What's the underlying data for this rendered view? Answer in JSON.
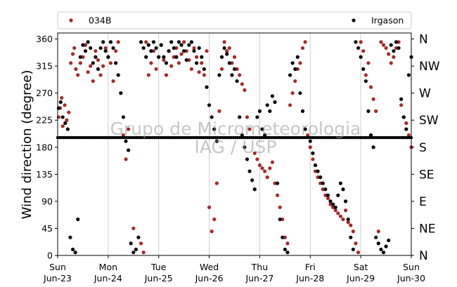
{
  "chart_data": {
    "type": "scatter",
    "ylabel": "Wind direction (degree)",
    "ylim": [
      0,
      370
    ],
    "yticks": [
      0,
      45,
      90,
      135,
      180,
      225,
      270,
      315,
      360
    ],
    "compass_labels": [
      {
        "label": "N",
        "value": 0
      },
      {
        "label": "NE",
        "value": 45
      },
      {
        "label": "E",
        "value": 90
      },
      {
        "label": "SE",
        "value": 135
      },
      {
        "label": "S",
        "value": 180
      },
      {
        "label": "SW",
        "value": 225
      },
      {
        "label": "W",
        "value": 270
      },
      {
        "label": "NW",
        "value": 315
      },
      {
        "label": "N",
        "value": 360
      }
    ],
    "xlim": [
      0,
      7
    ],
    "xticks": [
      {
        "day": "Sun",
        "date": "Jun-23",
        "value": 0
      },
      {
        "day": "Mon",
        "date": "Jun-24",
        "value": 1
      },
      {
        "day": "Tue",
        "date": "Jun-25",
        "value": 2
      },
      {
        "day": "Wed",
        "date": "Jun-26",
        "value": 3
      },
      {
        "day": "Thu",
        "date": "Jun-27",
        "value": 4
      },
      {
        "day": "Fri",
        "date": "Jun-28",
        "value": 5
      },
      {
        "day": "Sat",
        "date": "Jun-29",
        "value": 6
      },
      {
        "day": "Sun",
        "date": "Jun-30",
        "value": 7
      }
    ],
    "grid": "vertical",
    "legend_position": "top",
    "watermark": [
      "Grupo de Micrometeorologia",
      "IAG / USP"
    ],
    "series": [
      {
        "name": "034B",
        "color": "#a52a2a",
        "points": [
          [
            0.02,
            230
          ],
          [
            0.05,
            245
          ],
          [
            0.08,
            262
          ],
          [
            0.1,
            215
          ],
          [
            0.14,
            250
          ],
          [
            0.18,
            225
          ],
          [
            0.22,
            238
          ],
          [
            0.26,
            320
          ],
          [
            0.3,
            335
          ],
          [
            0.33,
            345
          ],
          [
            0.36,
            310
          ],
          [
            0.4,
            300
          ],
          [
            0.45,
            320
          ],
          [
            0.5,
            330
          ],
          [
            0.55,
            350
          ],
          [
            0.6,
            305
          ],
          [
            0.65,
            315
          ],
          [
            0.7,
            290
          ],
          [
            0.75,
            340
          ],
          [
            0.8,
            325
          ],
          [
            0.85,
            300
          ],
          [
            0.9,
            315
          ],
          [
            0.95,
            345
          ],
          [
            1.0,
            330
          ],
          [
            1.05,
            320
          ],
          [
            1.1,
            290
          ],
          [
            1.15,
            340
          ],
          [
            1.2,
            355
          ],
          [
            1.3,
            200
          ],
          [
            1.35,
            160
          ],
          [
            1.4,
            210
          ],
          [
            1.5,
            45
          ],
          [
            1.55,
            10
          ],
          [
            1.6,
            30
          ],
          [
            1.65,
            20
          ],
          [
            1.7,
            5
          ],
          [
            1.75,
            355
          ],
          [
            1.8,
            300
          ],
          [
            1.85,
            320
          ],
          [
            1.9,
            340
          ],
          [
            1.95,
            310
          ],
          [
            2.0,
            330
          ],
          [
            2.05,
            350
          ],
          [
            2.1,
            325
          ],
          [
            2.15,
            300
          ],
          [
            2.2,
            340
          ],
          [
            2.25,
            315
          ],
          [
            2.3,
            330
          ],
          [
            2.35,
            345
          ],
          [
            2.4,
            320
          ],
          [
            2.45,
            335
          ],
          [
            2.5,
            355
          ],
          [
            2.55,
            340
          ],
          [
            2.6,
            325
          ],
          [
            2.65,
            310
          ],
          [
            2.7,
            345
          ],
          [
            2.75,
            330
          ],
          [
            2.8,
            305
          ],
          [
            2.85,
            320
          ],
          [
            2.9,
            300
          ],
          [
            2.95,
            340
          ],
          [
            3.0,
            80
          ],
          [
            3.05,
            40
          ],
          [
            3.1,
            60
          ],
          [
            3.15,
            120
          ],
          [
            3.2,
            240
          ],
          [
            3.25,
            310
          ],
          [
            3.3,
            355
          ],
          [
            3.35,
            340
          ],
          [
            3.4,
            345
          ],
          [
            3.45,
            320
          ],
          [
            3.5,
            330
          ],
          [
            3.55,
            310
          ],
          [
            3.6,
            300
          ],
          [
            3.65,
            285
          ],
          [
            3.7,
            275
          ],
          [
            3.75,
            230
          ],
          [
            3.8,
            210
          ],
          [
            3.9,
            170
          ],
          [
            3.95,
            160
          ],
          [
            4.0,
            150
          ],
          [
            4.05,
            145
          ],
          [
            4.1,
            140
          ],
          [
            4.15,
            130
          ],
          [
            4.2,
            145
          ],
          [
            4.25,
            155
          ],
          [
            4.3,
            120
          ],
          [
            4.35,
            100
          ],
          [
            4.4,
            80
          ],
          [
            4.45,
            60
          ],
          [
            4.5,
            30
          ],
          [
            4.55,
            20
          ],
          [
            4.6,
            250
          ],
          [
            4.65,
            270
          ],
          [
            4.7,
            290
          ],
          [
            4.75,
            310
          ],
          [
            4.8,
            320
          ],
          [
            4.85,
            345
          ],
          [
            4.9,
            355
          ],
          [
            4.95,
            200
          ],
          [
            5.0,
            180
          ],
          [
            5.05,
            160
          ],
          [
            5.1,
            140
          ],
          [
            5.15,
            130
          ],
          [
            5.2,
            120
          ],
          [
            5.25,
            110
          ],
          [
            5.3,
            100
          ],
          [
            5.35,
            95
          ],
          [
            5.4,
            85
          ],
          [
            5.45,
            80
          ],
          [
            5.5,
            75
          ],
          [
            5.55,
            70
          ],
          [
            5.6,
            65
          ],
          [
            5.65,
            60
          ],
          [
            5.7,
            75
          ],
          [
            5.75,
            55
          ],
          [
            5.8,
            50
          ],
          [
            5.85,
            40
          ],
          [
            5.9,
            20
          ],
          [
            5.95,
            5
          ],
          [
            6.0,
            355
          ],
          [
            6.05,
            340
          ],
          [
            6.1,
            300
          ],
          [
            6.15,
            320
          ],
          [
            6.2,
            280
          ],
          [
            6.25,
            260
          ],
          [
            6.3,
            240
          ],
          [
            6.35,
            40
          ],
          [
            6.4,
            355
          ],
          [
            6.45,
            350
          ],
          [
            6.5,
            345
          ],
          [
            6.55,
            335
          ],
          [
            6.6,
            320
          ],
          [
            6.65,
            330
          ],
          [
            6.7,
            345
          ],
          [
            6.75,
            355
          ],
          [
            6.8,
            250
          ],
          [
            6.85,
            230
          ],
          [
            6.9,
            220
          ],
          [
            6.95,
            200
          ],
          [
            7.0,
            180
          ]
        ]
      },
      {
        "name": "Irgason",
        "color": "#000000",
        "points": [
          [
            0.02,
            245
          ],
          [
            0.06,
            255
          ],
          [
            0.1,
            230
          ],
          [
            0.15,
            220
          ],
          [
            0.2,
            210
          ],
          [
            0.25,
            30
          ],
          [
            0.3,
            10
          ],
          [
            0.35,
            5
          ],
          [
            0.4,
            60
          ],
          [
            0.45,
            330
          ],
          [
            0.5,
            350
          ],
          [
            0.55,
            340
          ],
          [
            0.6,
            355
          ],
          [
            0.65,
            345
          ],
          [
            0.7,
            320
          ],
          [
            0.75,
            330
          ],
          [
            0.8,
            310
          ],
          [
            0.85,
            345
          ],
          [
            0.9,
            355
          ],
          [
            0.95,
            340
          ],
          [
            1.0,
            330
          ],
          [
            1.05,
            355
          ],
          [
            1.1,
            345
          ],
          [
            1.15,
            320
          ],
          [
            1.2,
            300
          ],
          [
            1.25,
            270
          ],
          [
            1.3,
            230
          ],
          [
            1.35,
            190
          ],
          [
            1.4,
            175
          ],
          [
            1.45,
            20
          ],
          [
            1.5,
            5
          ],
          [
            1.55,
            10
          ],
          [
            1.6,
            30
          ],
          [
            1.65,
            355
          ],
          [
            1.7,
            345
          ],
          [
            1.75,
            330
          ],
          [
            1.8,
            350
          ],
          [
            1.85,
            340
          ],
          [
            1.9,
            355
          ],
          [
            1.95,
            345
          ],
          [
            2.0,
            330
          ],
          [
            2.05,
            350
          ],
          [
            2.1,
            330
          ],
          [
            2.15,
            320
          ],
          [
            2.2,
            340
          ],
          [
            2.25,
            355
          ],
          [
            2.3,
            345
          ],
          [
            2.35,
            330
          ],
          [
            2.4,
            355
          ],
          [
            2.45,
            350
          ],
          [
            2.5,
            340
          ],
          [
            2.55,
            325
          ],
          [
            2.6,
            350
          ],
          [
            2.65,
            355
          ],
          [
            2.7,
            340
          ],
          [
            2.75,
            320
          ],
          [
            2.8,
            345
          ],
          [
            2.85,
            330
          ],
          [
            2.9,
            310
          ],
          [
            2.95,
            280
          ],
          [
            3.0,
            250
          ],
          [
            3.05,
            230
          ],
          [
            3.1,
            210
          ],
          [
            3.15,
            190
          ],
          [
            3.2,
            300
          ],
          [
            3.25,
            330
          ],
          [
            3.3,
            345
          ],
          [
            3.35,
            335
          ],
          [
            3.4,
            320
          ],
          [
            3.45,
            300
          ],
          [
            3.5,
            310
          ],
          [
            3.55,
            290
          ],
          [
            3.6,
            230
          ],
          [
            3.65,
            200
          ],
          [
            3.7,
            180
          ],
          [
            3.75,
            160
          ],
          [
            3.8,
            140
          ],
          [
            3.85,
            125
          ],
          [
            3.9,
            110
          ],
          [
            3.95,
            230
          ],
          [
            4.0,
            240
          ],
          [
            4.05,
            210
          ],
          [
            4.1,
            200
          ],
          [
            4.15,
            250
          ],
          [
            4.2,
            240
          ],
          [
            4.25,
            265
          ],
          [
            4.3,
            255
          ],
          [
            4.35,
            120
          ],
          [
            4.4,
            60
          ],
          [
            4.45,
            30
          ],
          [
            4.5,
            10
          ],
          [
            4.55,
            5
          ],
          [
            4.6,
            300
          ],
          [
            4.65,
            320
          ],
          [
            4.7,
            310
          ],
          [
            4.75,
            330
          ],
          [
            4.8,
            270
          ],
          [
            4.85,
            240
          ],
          [
            4.9,
            210
          ],
          [
            5.0,
            190
          ],
          [
            5.05,
            170
          ],
          [
            5.1,
            150
          ],
          [
            5.15,
            140
          ],
          [
            5.2,
            130
          ],
          [
            5.25,
            120
          ],
          [
            5.3,
            110
          ],
          [
            5.35,
            100
          ],
          [
            5.4,
            90
          ],
          [
            5.45,
            85
          ],
          [
            5.5,
            80
          ],
          [
            5.55,
            100
          ],
          [
            5.6,
            120
          ],
          [
            5.65,
            110
          ],
          [
            5.7,
            90
          ],
          [
            5.75,
            60
          ],
          [
            5.8,
            30
          ],
          [
            5.85,
            10
          ],
          [
            5.9,
            355
          ],
          [
            5.95,
            345
          ],
          [
            6.0,
            330
          ],
          [
            6.05,
            310
          ],
          [
            6.1,
            290
          ],
          [
            6.15,
            240
          ],
          [
            6.2,
            200
          ],
          [
            6.25,
            180
          ],
          [
            6.3,
            30
          ],
          [
            6.35,
            20
          ],
          [
            6.4,
            10
          ],
          [
            6.45,
            5
          ],
          [
            6.5,
            15
          ],
          [
            6.55,
            25
          ],
          [
            6.6,
            350
          ],
          [
            6.65,
            340
          ],
          [
            6.7,
            355
          ],
          [
            6.75,
            345
          ],
          [
            6.8,
            260
          ],
          [
            6.85,
            230
          ],
          [
            6.9,
            210
          ],
          [
            6.95,
            300
          ],
          [
            7.0,
            330
          ]
        ]
      },
      {
        "name": "Irgason",
        "color": "#000000",
        "constant_line": {
          "value": 196,
          "from": 0,
          "to": 7,
          "step": 0.04
        }
      }
    ]
  }
}
